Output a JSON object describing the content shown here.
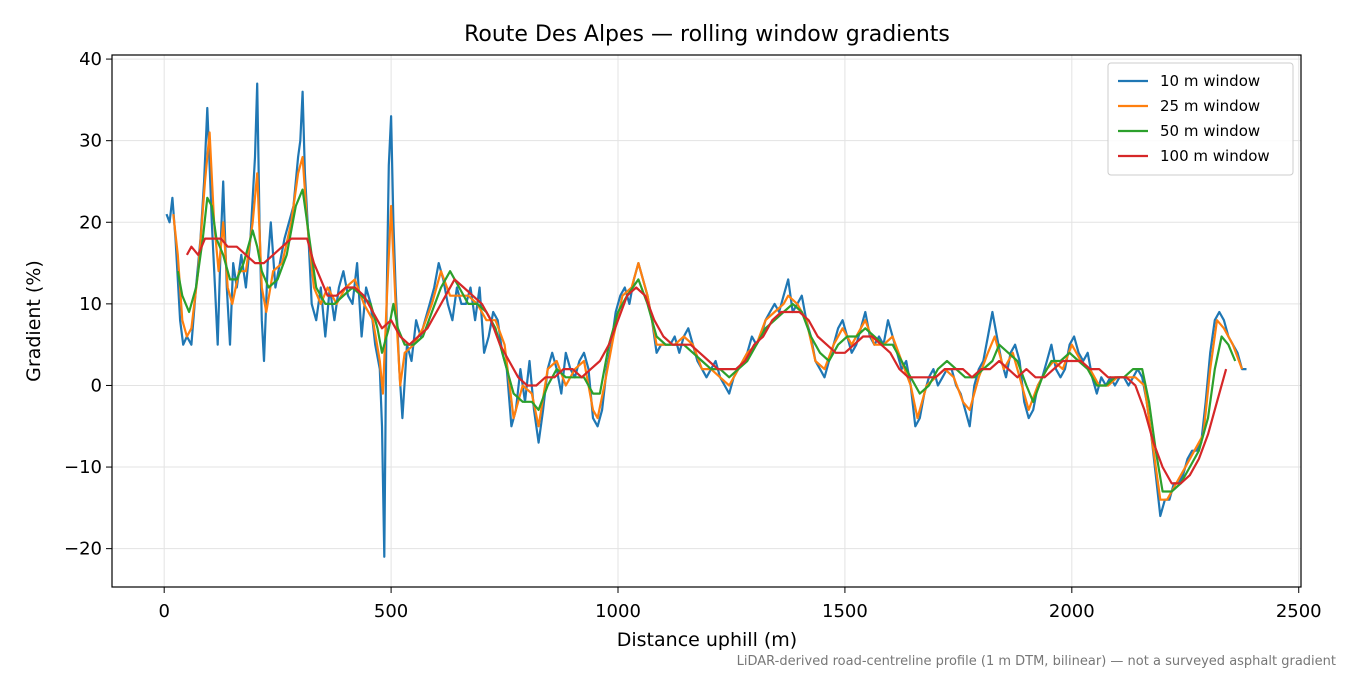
{
  "chart_data": {
    "type": "line",
    "title": "Route Des Alpes — rolling window gradients",
    "x_label": "Distance uphill (m)",
    "y_label": "Gradient (%)",
    "annotation": "LiDAR-derived road-centreline profile (1 m DTM, bilinear) — not a surveyed asphalt gradient",
    "xlim": [
      -115,
      2505
    ],
    "ylim": [
      -24.7,
      40.5
    ],
    "xticks": [
      0,
      500,
      1000,
      1500,
      2000,
      2500
    ],
    "yticks": [
      {
        "value": -20,
        "label": "−20"
      },
      {
        "value": -10,
        "label": "−10"
      },
      0,
      10,
      20,
      30,
      40
    ],
    "grid": true,
    "legend": "upper right",
    "series": [
      {
        "name": "10 m window",
        "color": "#1f77b4",
        "x": [
          5,
          12,
          18,
          25,
          35,
          42,
          50,
          60,
          70,
          80,
          88,
          95,
          100,
          105,
          112,
          118,
          125,
          130,
          138,
          145,
          152,
          160,
          170,
          180,
          190,
          200,
          205,
          210,
          215,
          220,
          228,
          235,
          245,
          255,
          265,
          275,
          285,
          295,
          300,
          305,
          310,
          318,
          325,
          335,
          345,
          355,
          365,
          375,
          385,
          395,
          405,
          415,
          425,
          435,
          445,
          455,
          465,
          475,
          480,
          485,
          490,
          495,
          500,
          505,
          510,
          518,
          525,
          535,
          545,
          555,
          565,
          575,
          585,
          595,
          605,
          615,
          625,
          635,
          645,
          655,
          665,
          675,
          685,
          695,
          705,
          715,
          725,
          735,
          745,
          755,
          765,
          775,
          785,
          795,
          805,
          815,
          825,
          835,
          845,
          855,
          865,
          875,
          885,
          895,
          905,
          915,
          925,
          935,
          945,
          955,
          965,
          975,
          985,
          995,
          1005,
          1015,
          1025,
          1035,
          1045,
          1055,
          1065,
          1075,
          1085,
          1095,
          1105,
          1115,
          1125,
          1135,
          1145,
          1155,
          1165,
          1175,
          1185,
          1195,
          1205,
          1215,
          1225,
          1235,
          1245,
          1255,
          1265,
          1275,
          1285,
          1295,
          1305,
          1315,
          1325,
          1335,
          1345,
          1355,
          1365,
          1375,
          1385,
          1395,
          1405,
          1415,
          1425,
          1435,
          1445,
          1455,
          1465,
          1475,
          1485,
          1495,
          1505,
          1515,
          1525,
          1535,
          1545,
          1555,
          1565,
          1575,
          1585,
          1595,
          1605,
          1615,
          1625,
          1635,
          1645,
          1655,
          1665,
          1675,
          1685,
          1695,
          1705,
          1715,
          1725,
          1735,
          1745,
          1755,
          1765,
          1775,
          1785,
          1795,
          1805,
          1815,
          1825,
          1835,
          1845,
          1855,
          1865,
          1875,
          1885,
          1895,
          1905,
          1915,
          1925,
          1935,
          1945,
          1955,
          1965,
          1975,
          1985,
          1995,
          2005,
          2015,
          2025,
          2035,
          2045,
          2055,
          2065,
          2075,
          2085,
          2095,
          2105,
          2115,
          2125,
          2135,
          2145,
          2155,
          2165,
          2175,
          2185,
          2195,
          2205,
          2215,
          2225,
          2235,
          2245,
          2255,
          2265,
          2275,
          2285,
          2295,
          2305,
          2315,
          2325,
          2335,
          2345,
          2355,
          2365,
          2375,
          2385
        ],
        "values": [
          21,
          20,
          23,
          18,
          8,
          5,
          6,
          5,
          12,
          18,
          25,
          34,
          27,
          20,
          12,
          5,
          18,
          25,
          12,
          5,
          15,
          12,
          16,
          12,
          18,
          28,
          37,
          20,
          8,
          3,
          15,
          20,
          12,
          15,
          18,
          20,
          22,
          28,
          30,
          36,
          26,
          18,
          10,
          8,
          12,
          6,
          12,
          8,
          12,
          14,
          11,
          10,
          15,
          6,
          12,
          10,
          5,
          2,
          -5,
          -21,
          10,
          27,
          33,
          20,
          12,
          2,
          -4,
          5,
          3,
          8,
          6,
          8,
          10,
          12,
          15,
          13,
          10,
          8,
          12,
          10,
          10,
          12,
          8,
          12,
          4,
          6,
          9,
          8,
          4,
          2,
          -5,
          -3,
          2,
          -2,
          3,
          -3,
          -7,
          -3,
          2,
          4,
          2,
          -1,
          4,
          2,
          1,
          3,
          4,
          2,
          -4,
          -5,
          -3,
          2,
          5,
          9,
          11,
          12,
          10,
          13,
          15,
          13,
          11,
          8,
          4,
          5,
          5,
          5,
          6,
          4,
          6,
          7,
          5,
          3,
          2,
          1,
          2,
          3,
          1,
          0,
          -1,
          1,
          2,
          3,
          4,
          6,
          5,
          6,
          8,
          9,
          10,
          9,
          11,
          13,
          9,
          10,
          11,
          8,
          6,
          3,
          2,
          1,
          3,
          5,
          7,
          8,
          6,
          4,
          5,
          7,
          9,
          6,
          5,
          6,
          5,
          8,
          6,
          4,
          2,
          3,
          0,
          -5,
          -4,
          -1,
          1,
          2,
          0,
          1,
          2,
          2,
          0,
          -1,
          -3,
          -5,
          0,
          2,
          3,
          6,
          9,
          6,
          3,
          1,
          4,
          5,
          3,
          -2,
          -4,
          -3,
          0,
          1,
          3,
          5,
          2,
          1,
          2,
          5,
          6,
          4,
          3,
          4,
          1,
          -1,
          1,
          0,
          1,
          0,
          1,
          1,
          0,
          1,
          2,
          1,
          -2,
          -6,
          -11,
          -16,
          -14,
          -14,
          -12,
          -12,
          -11,
          -9,
          -8,
          -8,
          -7,
          -2,
          4,
          8,
          9,
          8,
          6,
          5,
          4,
          2,
          2
        ]
      },
      {
        "name": "25 m window",
        "color": "#ff7f0e",
        "x": [
          20,
          30,
          40,
          50,
          60,
          75,
          90,
          100,
          110,
          120,
          130,
          140,
          150,
          165,
          180,
          195,
          205,
          215,
          225,
          240,
          260,
          280,
          295,
          305,
          315,
          330,
          345,
          360,
          380,
          400,
          420,
          440,
          460,
          475,
          482,
          490,
          500,
          510,
          520,
          530,
          550,
          570,
          590,
          610,
          630,
          650,
          670,
          690,
          710,
          730,
          750,
          770,
          790,
          810,
          825,
          845,
          865,
          885,
          905,
          925,
          945,
          955,
          970,
          990,
          1010,
          1030,
          1045,
          1065,
          1085,
          1105,
          1125,
          1145,
          1165,
          1185,
          1205,
          1225,
          1245,
          1265,
          1285,
          1305,
          1325,
          1345,
          1365,
          1375,
          1395,
          1415,
          1435,
          1455,
          1475,
          1495,
          1515,
          1535,
          1545,
          1565,
          1585,
          1605,
          1625,
          1645,
          1660,
          1680,
          1700,
          1720,
          1740,
          1760,
          1775,
          1795,
          1815,
          1830,
          1850,
          1870,
          1890,
          1905,
          1925,
          1945,
          1960,
          1980,
          2000,
          2020,
          2040,
          2060,
          2080,
          2100,
          2120,
          2140,
          2160,
          2180,
          2195,
          2210,
          2230,
          2250,
          2270,
          2290,
          2305,
          2320,
          2335,
          2355,
          2375
        ],
        "values": [
          21,
          16,
          8,
          6,
          7,
          14,
          25,
          31,
          20,
          14,
          20,
          12,
          10,
          14,
          14,
          20,
          26,
          12,
          9,
          14,
          15,
          20,
          26,
          28,
          20,
          12,
          10,
          12,
          10,
          12,
          13,
          10,
          8,
          3,
          -1,
          10,
          22,
          10,
          0,
          4,
          5,
          7,
          10,
          14,
          11,
          11,
          11,
          10,
          8,
          8,
          5,
          -4,
          0,
          -1,
          -5,
          2,
          3,
          0,
          2,
          3,
          -3,
          -4,
          0,
          6,
          11,
          12,
          15,
          11,
          5,
          5,
          5,
          6,
          5,
          2,
          2,
          1,
          0,
          2,
          4,
          5,
          8,
          9,
          10,
          11,
          10,
          8,
          3,
          2,
          5,
          7,
          5,
          7,
          8,
          5,
          5,
          6,
          3,
          0,
          -4,
          0,
          1,
          2,
          1,
          -2,
          -3,
          1,
          4,
          6,
          2,
          4,
          0,
          -3,
          0,
          2,
          3,
          2,
          5,
          3,
          2,
          0,
          0,
          1,
          1,
          1,
          0,
          -8,
          -14,
          -14,
          -12,
          -10,
          -8,
          -6,
          2,
          8,
          7,
          5,
          2
        ]
      },
      {
        "name": "50 m window",
        "color": "#2ca02c",
        "x": [
          30,
          40,
          55,
          70,
          85,
          95,
          105,
          115,
          130,
          145,
          160,
          175,
          195,
          205,
          215,
          230,
          250,
          270,
          290,
          305,
          320,
          335,
          355,
          375,
          395,
          415,
          435,
          455,
          470,
          480,
          495,
          505,
          515,
          530,
          550,
          570,
          590,
          610,
          630,
          650,
          670,
          690,
          710,
          730,
          750,
          770,
          790,
          810,
          825,
          845,
          865,
          885,
          905,
          925,
          945,
          960,
          980,
          1000,
          1020,
          1045,
          1065,
          1085,
          1105,
          1125,
          1145,
          1165,
          1185,
          1205,
          1225,
          1245,
          1265,
          1285,
          1305,
          1325,
          1345,
          1365,
          1385,
          1405,
          1425,
          1445,
          1465,
          1485,
          1505,
          1525,
          1545,
          1565,
          1585,
          1605,
          1625,
          1645,
          1665,
          1685,
          1705,
          1725,
          1745,
          1765,
          1785,
          1805,
          1825,
          1840,
          1860,
          1880,
          1900,
          1915,
          1935,
          1955,
          1975,
          1995,
          2015,
          2035,
          2055,
          2075,
          2095,
          2115,
          2135,
          2155,
          2170,
          2185,
          2200,
          2220,
          2240,
          2260,
          2280,
          2300,
          2315,
          2330,
          2345,
          2360
        ],
        "values": [
          14,
          11,
          9,
          12,
          18,
          23,
          22,
          18,
          16,
          13,
          13,
          15,
          19,
          17,
          14,
          12,
          13,
          16,
          22,
          24,
          18,
          12,
          10,
          10,
          11,
          12,
          11,
          10,
          7,
          4,
          7,
          10,
          7,
          5,
          5,
          6,
          9,
          12,
          14,
          12,
          10,
          10,
          9,
          7,
          3,
          -1,
          -2,
          -2,
          -3,
          0,
          2,
          1,
          1,
          1,
          -1,
          -1,
          5,
          9,
          11,
          13,
          10,
          6,
          5,
          5,
          5,
          4,
          3,
          2,
          2,
          1,
          2,
          3,
          5,
          7,
          8,
          9,
          10,
          9,
          6,
          4,
          3,
          5,
          6,
          6,
          7,
          6,
          5,
          5,
          3,
          1,
          -1,
          0,
          2,
          3,
          2,
          1,
          1,
          2,
          3,
          5,
          4,
          3,
          0,
          -2,
          1,
          3,
          3,
          4,
          3,
          2,
          0,
          0,
          1,
          1,
          2,
          2,
          -2,
          -8,
          -13,
          -13,
          -12,
          -10,
          -8,
          -4,
          2,
          6,
          5,
          3
        ]
      },
      {
        "name": "100 m window",
        "color": "#d62728",
        "x": [
          50,
          60,
          75,
          90,
          105,
          125,
          140,
          160,
          180,
          200,
          220,
          240,
          260,
          280,
          300,
          315,
          330,
          345,
          360,
          380,
          400,
          420,
          440,
          460,
          480,
          500,
          520,
          540,
          560,
          580,
          600,
          620,
          640,
          660,
          680,
          700,
          720,
          740,
          760,
          780,
          800,
          820,
          840,
          860,
          880,
          900,
          920,
          940,
          960,
          980,
          1000,
          1020,
          1040,
          1060,
          1080,
          1100,
          1120,
          1140,
          1160,
          1180,
          1200,
          1220,
          1240,
          1260,
          1280,
          1300,
          1320,
          1340,
          1360,
          1380,
          1400,
          1420,
          1440,
          1460,
          1480,
          1500,
          1520,
          1540,
          1560,
          1580,
          1600,
          1620,
          1640,
          1660,
          1680,
          1700,
          1720,
          1740,
          1760,
          1780,
          1800,
          1820,
          1840,
          1860,
          1880,
          1900,
          1920,
          1940,
          1960,
          1980,
          2000,
          2020,
          2040,
          2060,
          2080,
          2100,
          2120,
          2140,
          2160,
          2180,
          2200,
          2220,
          2240,
          2260,
          2280,
          2300,
          2320,
          2340
        ],
        "values": [
          16,
          17,
          16,
          18,
          18,
          18,
          17,
          17,
          16,
          15,
          15,
          16,
          17,
          18,
          18,
          18,
          15,
          13,
          11,
          11,
          12,
          12,
          11,
          9,
          7,
          8,
          6,
          5,
          6,
          7,
          9,
          11,
          13,
          12,
          11,
          10,
          8,
          5,
          3,
          1,
          0,
          0,
          1,
          1,
          2,
          2,
          1,
          2,
          3,
          5,
          8,
          11,
          12,
          11,
          8,
          6,
          5,
          5,
          5,
          4,
          3,
          2,
          2,
          2,
          3,
          5,
          6,
          8,
          9,
          9,
          9,
          8,
          6,
          5,
          4,
          4,
          5,
          6,
          6,
          5,
          4,
          2,
          1,
          1,
          1,
          1,
          2,
          2,
          2,
          1,
          2,
          2,
          3,
          2,
          1,
          2,
          1,
          1,
          2,
          3,
          3,
          3,
          2,
          2,
          1,
          1,
          1,
          0,
          -3,
          -7,
          -10,
          -12,
          -12,
          -11,
          -9,
          -6,
          -2,
          2
        ]
      }
    ]
  }
}
